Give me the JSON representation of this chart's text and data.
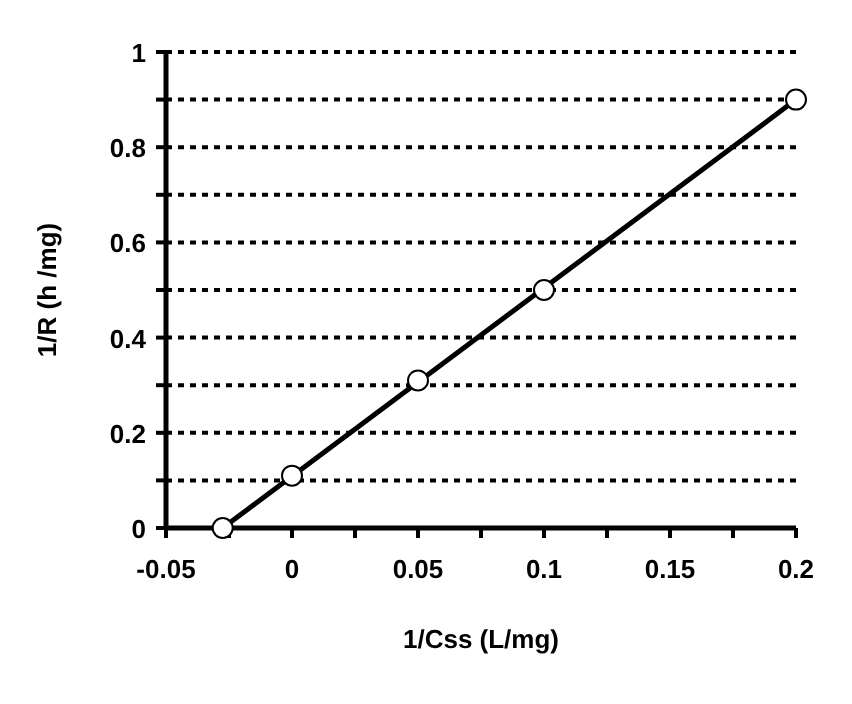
{
  "chart_data": {
    "type": "scatter",
    "xlabel": "1/Css (L/mg)",
    "ylabel": "1/R (h /mg)",
    "xlim": [
      -0.05,
      0.2
    ],
    "ylim": [
      0,
      1
    ],
    "xticks": [
      -0.05,
      {
        "value": -0.025,
        "label": null
      },
      0,
      {
        "value": 0.025,
        "label": null
      },
      0.05,
      {
        "value": 0.075,
        "label": null
      },
      0.1,
      {
        "value": 0.125,
        "label": null
      },
      0.15,
      {
        "value": 0.175,
        "label": null
      },
      0.2
    ],
    "yticks": [
      0,
      {
        "value": 0.1,
        "label": null
      },
      0.2,
      {
        "value": 0.3,
        "label": null
      },
      0.4,
      {
        "value": 0.5,
        "label": null
      },
      0.6,
      {
        "value": 0.7,
        "label": null
      },
      0.8,
      {
        "value": 0.9,
        "label": null
      },
      1
    ],
    "grid": "y",
    "marker": "circle",
    "series": [
      {
        "type": "line",
        "color": "#000000",
        "x": [
          -0.0275,
          0.2
        ],
        "values": [
          0,
          0.9
        ],
        "marker": "none",
        "line_style": "solid"
      },
      {
        "color": "#000000",
        "x": [
          -0.0275,
          0,
          0.05,
          0.1,
          0.2
        ],
        "values": [
          0,
          0.11,
          0.31,
          0.5,
          0.9
        ]
      }
    ]
  }
}
